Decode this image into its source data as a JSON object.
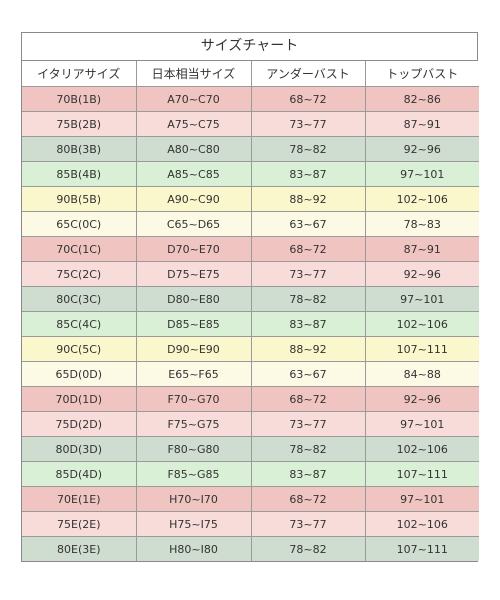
{
  "title": "サイズチャート",
  "headers": [
    "イタリアサイズ",
    "日本相当サイズ",
    "アンダーバスト",
    "トップバスト"
  ],
  "rows": [
    {
      "cells": [
        "70B(1B)",
        "A70~C70",
        "68~72",
        "82~86"
      ],
      "color": "#f0c4c0"
    },
    {
      "cells": [
        "75B(2B)",
        "A75~C75",
        "73~77",
        "87~91"
      ],
      "color": "#f7dcd9"
    },
    {
      "cells": [
        "80B(3B)",
        "A80~C80",
        "78~82",
        "92~96"
      ],
      "color": "#cfdcd0"
    },
    {
      "cells": [
        "85B(4B)",
        "A85~C85",
        "83~87",
        "97~101"
      ],
      "color": "#d9f0d6"
    },
    {
      "cells": [
        "90B(5B)",
        "A90~C90",
        "88~92",
        "102~106"
      ],
      "color": "#fbf7cc"
    },
    {
      "cells": [
        "65C(0C)",
        "C65~D65",
        "63~67",
        "78~83"
      ],
      "color": "#fcfae5"
    },
    {
      "cells": [
        "70C(1C)",
        "D70~E70",
        "68~72",
        "87~91"
      ],
      "color": "#f0c4c0"
    },
    {
      "cells": [
        "75C(2C)",
        "D75~E75",
        "73~77",
        "92~96"
      ],
      "color": "#f7dcd9"
    },
    {
      "cells": [
        "80C(3C)",
        "D80~E80",
        "78~82",
        "97~101"
      ],
      "color": "#cfdcd0"
    },
    {
      "cells": [
        "85C(4C)",
        "D85~E85",
        "83~87",
        "102~106"
      ],
      "color": "#d9f0d6"
    },
    {
      "cells": [
        "90C(5C)",
        "D90~E90",
        "88~92",
        "107~111"
      ],
      "color": "#fbf7cc"
    },
    {
      "cells": [
        "65D(0D)",
        "E65~F65",
        "63~67",
        "84~88"
      ],
      "color": "#fcfae5"
    },
    {
      "cells": [
        "70D(1D)",
        "F70~G70",
        "68~72",
        "92~96"
      ],
      "color": "#f0c4c0"
    },
    {
      "cells": [
        "75D(2D)",
        "F75~G75",
        "73~77",
        "97~101"
      ],
      "color": "#f7dcd9"
    },
    {
      "cells": [
        "80D(3D)",
        "F80~G80",
        "78~82",
        "102~106"
      ],
      "color": "#cfdcd0"
    },
    {
      "cells": [
        "85D(4D)",
        "F85~G85",
        "83~87",
        "107~111"
      ],
      "color": "#d9f0d6"
    },
    {
      "cells": [
        "70E(1E)",
        "H70~I70",
        "68~72",
        "97~101"
      ],
      "color": "#f0c4c0"
    },
    {
      "cells": [
        "75E(2E)",
        "H75~I75",
        "73~77",
        "102~106"
      ],
      "color": "#f7dcd9"
    },
    {
      "cells": [
        "80E(3E)",
        "H80~I80",
        "78~82",
        "107~111"
      ],
      "color": "#cfdcd0"
    }
  ]
}
